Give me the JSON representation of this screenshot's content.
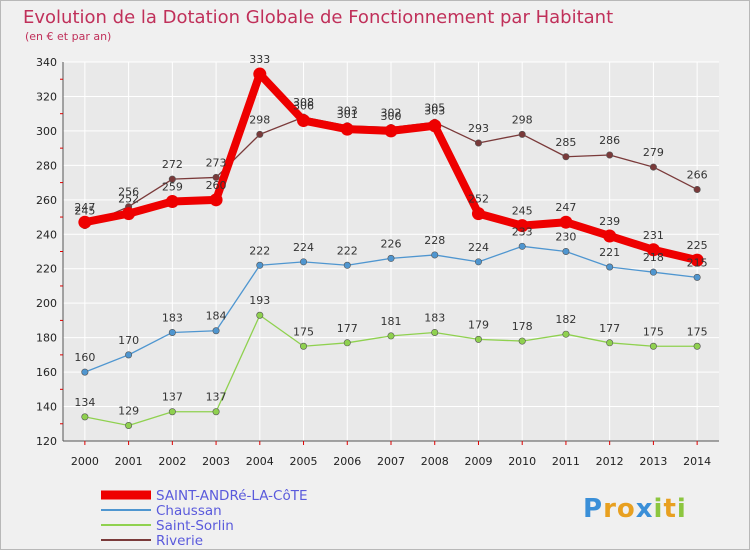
{
  "chart_data": {
    "type": "line",
    "title": "Evolution de la Dotation Globale de Fonctionnement par Habitant",
    "subtitle": "(en € et par an)",
    "x": [
      2000,
      2001,
      2002,
      2003,
      2004,
      2005,
      2006,
      2007,
      2008,
      2009,
      2010,
      2011,
      2012,
      2013,
      2014
    ],
    "ylim": [
      120,
      340
    ],
    "yticks": [
      120,
      140,
      160,
      180,
      200,
      220,
      240,
      260,
      280,
      300,
      320,
      340
    ],
    "grid": true,
    "legend_position": "bottom-left",
    "series": [
      {
        "name": "Riverie",
        "color": "#7a3a3a",
        "values": [
          245,
          256,
          272,
          273,
          298,
          308,
          303,
          302,
          305,
          293,
          298,
          285,
          286,
          279,
          266
        ]
      },
      {
        "name": "Chaussan",
        "color": "#4f96d0",
        "values": [
          160,
          170,
          183,
          184,
          222,
          224,
          222,
          226,
          228,
          224,
          233,
          230,
          221,
          218,
          215
        ]
      },
      {
        "name": "Saint-Sorlin",
        "color": "#8fd14f",
        "values": [
          134,
          129,
          137,
          137,
          193,
          175,
          177,
          181,
          183,
          179,
          178,
          182,
          177,
          175,
          175
        ]
      },
      {
        "name": "SAINT-ANDRé-LA-CôTE",
        "color": "#ee0000",
        "values": [
          247,
          252,
          259,
          260,
          333,
          306,
          301,
          300,
          303,
          252,
          245,
          247,
          239,
          231,
          225
        ]
      }
    ],
    "legend_order": [
      "SAINT-ANDRé-LA-CôTE",
      "Chaussan",
      "Saint-Sorlin",
      "Riverie"
    ]
  },
  "brand": {
    "name": "Proxiti",
    "letters": [
      "P",
      "r",
      "o",
      "x",
      "i",
      "t",
      "i"
    ],
    "colors": [
      "#3a8fd8",
      "#e8a020",
      "#e8a020",
      "#3a8fd8",
      "#8cc63f",
      "#e8a020",
      "#8cc63f"
    ]
  },
  "colors": {
    "title": "#c0305a",
    "legend_text": "#5a5adc",
    "grid": "#ffffff",
    "tick_mark": "#dd0000"
  }
}
